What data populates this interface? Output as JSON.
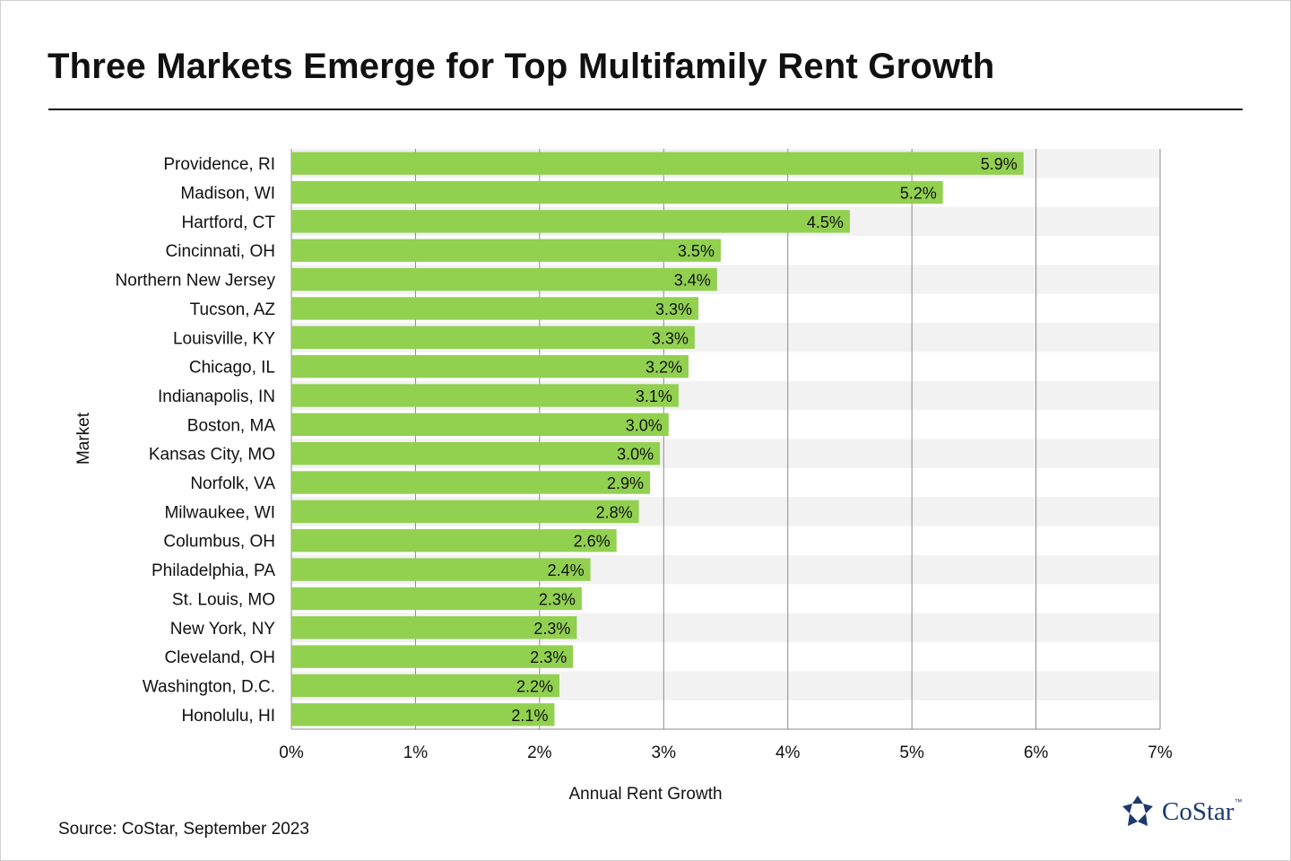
{
  "title": "Three Markets Emerge for Top Multifamily Rent Growth",
  "source": "Source: CoStar, September 2023",
  "logo": {
    "name": "CoStar",
    "icon": "costar-star-icon",
    "color": "#1d3a6e"
  },
  "chart_data": {
    "type": "bar",
    "orientation": "horizontal",
    "xlabel": "Annual  Rent Growth",
    "ylabel": "Market",
    "xlim": [
      0,
      7
    ],
    "x_ticks": [
      "0%",
      "1%",
      "2%",
      "3%",
      "4%",
      "5%",
      "6%",
      "7%"
    ],
    "grid": true,
    "bar_color": "#92d050",
    "band_color": "#f2f2f2",
    "categories": [
      "Providence, RI",
      "Madison, WI",
      "Hartford, CT",
      "Cincinnati, OH",
      "Northern New Jersey",
      "Tucson, AZ",
      "Louisville, KY",
      "Chicago, IL",
      "Indianapolis, IN",
      "Boston, MA",
      "Kansas City, MO",
      "Norfolk, VA",
      "Milwaukee, WI",
      "Columbus, OH",
      "Philadelphia, PA",
      "St. Louis, MO",
      "New York, NY",
      "Cleveland, OH",
      "Washington, D.C.",
      "Honolulu, HI"
    ],
    "values": [
      5.9,
      5.25,
      4.5,
      3.46,
      3.43,
      3.28,
      3.25,
      3.2,
      3.12,
      3.04,
      2.97,
      2.89,
      2.8,
      2.62,
      2.41,
      2.34,
      2.3,
      2.27,
      2.16,
      2.12
    ],
    "data_labels": [
      "5.9%",
      "5.2%",
      "4.5%",
      "3.5%",
      "3.4%",
      "3.3%",
      "3.3%",
      "3.2%",
      "3.1%",
      "3.0%",
      "3.0%",
      "2.9%",
      "2.8%",
      "2.6%",
      "2.4%",
      "2.3%",
      "2.3%",
      "2.3%",
      "2.2%",
      "2.1%"
    ]
  }
}
